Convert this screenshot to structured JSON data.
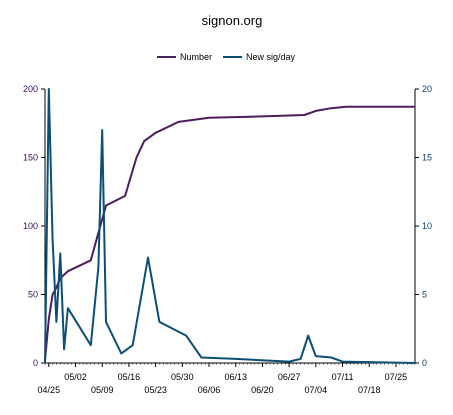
{
  "chart_data": {
    "type": "line",
    "title": "signon.org",
    "legend_position": "top",
    "grid": false,
    "x_axis": {
      "type": "date",
      "range": [
        "04/24",
        "07/30"
      ],
      "tick_labels_upper": [
        "05/02",
        "05/16",
        "05/30",
        "06/13",
        "06/27",
        "07/11",
        "07/25"
      ],
      "tick_labels_lower": [
        "04/25",
        "05/09",
        "05/23",
        "06/06",
        "06/20",
        "07/04",
        "07/18"
      ]
    },
    "y_axis_left": {
      "range": [
        0,
        200
      ],
      "ticks": [
        "0",
        "50",
        "100",
        "150",
        "200"
      ]
    },
    "y_axis_right": {
      "range": [
        0,
        20
      ],
      "ticks": [
        "0",
        "5",
        "10",
        "15",
        "20"
      ]
    },
    "series": [
      {
        "name": "Number",
        "axis": "left",
        "color": "#4b1d5e",
        "points": [
          [
            "04/24",
            2
          ],
          [
            "04/25",
            32
          ],
          [
            "04/26",
            50
          ],
          [
            "04/27",
            55
          ],
          [
            "04/28",
            62
          ],
          [
            "04/30",
            67
          ],
          [
            "05/06",
            75
          ],
          [
            "05/08",
            95
          ],
          [
            "05/10",
            115
          ],
          [
            "05/15",
            122
          ],
          [
            "05/18",
            150
          ],
          [
            "05/20",
            162
          ],
          [
            "05/23",
            168
          ],
          [
            "05/29",
            176
          ],
          [
            "06/06",
            179
          ],
          [
            "06/20",
            180
          ],
          [
            "07/01",
            181
          ],
          [
            "07/04",
            184
          ],
          [
            "07/08",
            186
          ],
          [
            "07/12",
            187
          ],
          [
            "07/30",
            187
          ]
        ]
      },
      {
        "name": "New sig/day",
        "axis": "right",
        "color": "#0c4e75",
        "points": [
          [
            "04/24",
            0
          ],
          [
            "04/25",
            20
          ],
          [
            "04/26",
            9
          ],
          [
            "04/27",
            3
          ],
          [
            "04/28",
            8
          ],
          [
            "04/29",
            1
          ],
          [
            "04/30",
            4
          ],
          [
            "05/06",
            1.3
          ],
          [
            "05/08",
            7
          ],
          [
            "05/09",
            17
          ],
          [
            "05/10",
            3
          ],
          [
            "05/14",
            0.7
          ],
          [
            "05/17",
            1.3
          ],
          [
            "05/21",
            7.7
          ],
          [
            "05/24",
            3
          ],
          [
            "05/31",
            2
          ],
          [
            "06/04",
            0.4
          ],
          [
            "06/13",
            0.3
          ],
          [
            "06/27",
            0.1
          ],
          [
            "06/30",
            0.3
          ],
          [
            "07/02",
            2
          ],
          [
            "07/04",
            0.5
          ],
          [
            "07/08",
            0.4
          ],
          [
            "07/11",
            0.1
          ],
          [
            "07/30",
            0
          ]
        ]
      }
    ]
  }
}
